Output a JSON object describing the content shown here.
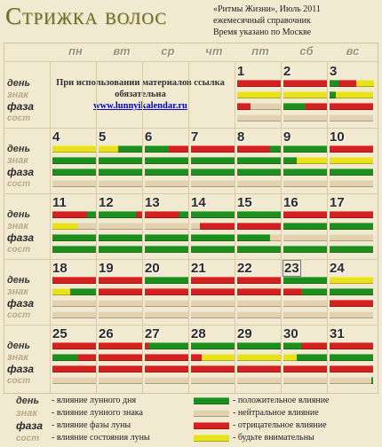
{
  "title": "Стрижка волос",
  "source": {
    "line1": "«Ритмы Жизни», Июль 2011",
    "line2": "ежемесячный справочник",
    "line3": "Время указано по Москве"
  },
  "note": {
    "text": "При использовании материалов ссылка обязательна",
    "link": "www.lunnyikalendar.ru"
  },
  "weekdays": [
    "пн",
    "вт",
    "ср",
    "чт",
    "пт",
    "сб",
    "вс"
  ],
  "row_labels": [
    "день",
    "знак",
    "фаза",
    "сост"
  ],
  "colors": {
    "positive": "#1c8f1c",
    "negative": "#d52020",
    "attention": "#e8e21a",
    "neutral": "#e2d2b0"
  },
  "today": "23",
  "weeks": [
    {
      "days": [
        null,
        null,
        null,
        null,
        {
          "n": "1",
          "rows": [
            [
              [
                "r",
                1
              ]
            ],
            [
              [
                "y",
                1
              ]
            ],
            [
              [
                "r",
                0.3
              ],
              [
                "n",
                0.7
              ]
            ],
            [
              [
                "n",
                1
              ]
            ]
          ]
        },
        {
          "n": "2",
          "rows": [
            [
              [
                "r",
                1
              ]
            ],
            [
              [
                "y",
                1
              ]
            ],
            [
              [
                "g",
                0.5
              ],
              [
                "r",
                0.5
              ]
            ],
            [
              [
                "n",
                1
              ]
            ]
          ]
        },
        {
          "n": "3",
          "rows": [
            [
              [
                "g",
                0.2
              ],
              [
                "r",
                0.4
              ],
              [
                "y",
                0.4
              ]
            ],
            [
              [
                "g",
                0.15
              ],
              [
                "y",
                0.85
              ]
            ],
            [
              [
                "r",
                1
              ]
            ],
            [
              [
                "n",
                1
              ]
            ]
          ]
        }
      ]
    },
    {
      "days": [
        {
          "n": "4",
          "rows": [
            [
              [
                "y",
                1
              ]
            ],
            [
              [
                "g",
                1
              ]
            ],
            [
              [
                "g",
                1
              ]
            ],
            [
              [
                "n",
                1
              ]
            ]
          ]
        },
        {
          "n": "5",
          "rows": [
            [
              [
                "y",
                0.45
              ],
              [
                "g",
                0.55
              ]
            ],
            [
              [
                "g",
                1
              ]
            ],
            [
              [
                "g",
                1
              ]
            ],
            [
              [
                "n",
                1
              ]
            ]
          ]
        },
        {
          "n": "6",
          "rows": [
            [
              [
                "g",
                0.55
              ],
              [
                "r",
                0.45
              ]
            ],
            [
              [
                "g",
                1
              ]
            ],
            [
              [
                "g",
                1
              ]
            ],
            [
              [
                "n",
                1
              ]
            ]
          ]
        },
        {
          "n": "7",
          "rows": [
            [
              [
                "r",
                1
              ]
            ],
            [
              [
                "g",
                1
              ]
            ],
            [
              [
                "g",
                1
              ]
            ],
            [
              [
                "n",
                1
              ]
            ]
          ]
        },
        {
          "n": "8",
          "rows": [
            [
              [
                "r",
                0.75
              ],
              [
                "g",
                0.25
              ]
            ],
            [
              [
                "g",
                1
              ]
            ],
            [
              [
                "g",
                1
              ]
            ],
            [
              [
                "n",
                1
              ]
            ]
          ]
        },
        {
          "n": "9",
          "rows": [
            [
              [
                "g",
                1
              ]
            ],
            [
              [
                "g",
                0.3
              ],
              [
                "y",
                0.7
              ]
            ],
            [
              [
                "g",
                1
              ]
            ],
            [
              [
                "n",
                1
              ]
            ]
          ]
        },
        {
          "n": "10",
          "rows": [
            [
              [
                "r",
                1
              ]
            ],
            [
              [
                "y",
                1
              ]
            ],
            [
              [
                "g",
                1
              ]
            ],
            [
              [
                "n",
                1
              ]
            ]
          ]
        }
      ]
    },
    {
      "days": [
        {
          "n": "11",
          "rows": [
            [
              [
                "r",
                0.8
              ],
              [
                "g",
                0.2
              ]
            ],
            [
              [
                "y",
                0.6
              ],
              [
                "n",
                0.4
              ]
            ],
            [
              [
                "g",
                1
              ]
            ],
            [
              [
                "g",
                1
              ]
            ]
          ]
        },
        {
          "n": "12",
          "rows": [
            [
              [
                "g",
                0.85
              ],
              [
                "r",
                0.15
              ]
            ],
            [
              [
                "n",
                1
              ]
            ],
            [
              [
                "g",
                1
              ]
            ],
            [
              [
                "g",
                1
              ]
            ]
          ]
        },
        {
          "n": "13",
          "rows": [
            [
              [
                "r",
                0.8
              ],
              [
                "g",
                0.2
              ]
            ],
            [
              [
                "n",
                1
              ]
            ],
            [
              [
                "g",
                1
              ]
            ],
            [
              [
                "g",
                1
              ]
            ]
          ]
        },
        {
          "n": "14",
          "rows": [
            [
              [
                "g",
                1
              ]
            ],
            [
              [
                "n",
                0.2
              ],
              [
                "r",
                0.8
              ]
            ],
            [
              [
                "g",
                1
              ]
            ],
            [
              [
                "g",
                1
              ]
            ]
          ]
        },
        {
          "n": "15",
          "rows": [
            [
              [
                "g",
                1
              ]
            ],
            [
              [
                "r",
                1
              ]
            ],
            [
              [
                "g",
                0.75
              ],
              [
                "n",
                0.25
              ]
            ],
            [
              [
                "g",
                1
              ]
            ]
          ]
        },
        {
          "n": "16",
          "rows": [
            [
              [
                "r",
                1
              ]
            ],
            [
              [
                "g",
                1
              ]
            ],
            [
              [
                "n",
                1
              ]
            ],
            [
              [
                "g",
                1
              ]
            ]
          ]
        },
        {
          "n": "17",
          "rows": [
            [
              [
                "r",
                1
              ]
            ],
            [
              [
                "g",
                1
              ]
            ],
            [
              [
                "n",
                1
              ]
            ],
            [
              [
                "g",
                1
              ]
            ]
          ]
        }
      ]
    },
    {
      "days": [
        {
          "n": "18",
          "rows": [
            [
              [
                "r",
                1
              ]
            ],
            [
              [
                "y",
                0.4
              ],
              [
                "g",
                0.6
              ]
            ],
            [
              [
                "n",
                1
              ]
            ],
            [
              [
                "n",
                1
              ]
            ]
          ]
        },
        {
          "n": "19",
          "rows": [
            [
              [
                "r",
                1
              ]
            ],
            [
              [
                "r",
                1
              ]
            ],
            [
              [
                "n",
                1
              ]
            ],
            [
              [
                "n",
                1
              ]
            ]
          ]
        },
        {
          "n": "20",
          "rows": [
            [
              [
                "g",
                1
              ]
            ],
            [
              [
                "r",
                1
              ]
            ],
            [
              [
                "n",
                1
              ]
            ],
            [
              [
                "n",
                1
              ]
            ]
          ]
        },
        {
          "n": "21",
          "rows": [
            [
              [
                "r",
                1
              ]
            ],
            [
              [
                "r",
                1
              ]
            ],
            [
              [
                "n",
                1
              ]
            ],
            [
              [
                "n",
                1
              ]
            ]
          ]
        },
        {
          "n": "22",
          "rows": [
            [
              [
                "r",
                1
              ]
            ],
            [
              [
                "r",
                1
              ]
            ],
            [
              [
                "n",
                1
              ]
            ],
            [
              [
                "n",
                1
              ]
            ]
          ]
        },
        {
          "n": "23",
          "rows": [
            [
              [
                "g",
                1
              ]
            ],
            [
              [
                "r",
                0.4
              ],
              [
                "g",
                0.6
              ]
            ],
            [
              [
                "n",
                1
              ]
            ],
            [
              [
                "n",
                1
              ]
            ]
          ]
        },
        {
          "n": "24",
          "rows": [
            [
              [
                "y",
                1
              ]
            ],
            [
              [
                "g",
                1
              ]
            ],
            [
              [
                "r",
                1
              ]
            ],
            [
              [
                "n",
                1
              ]
            ]
          ]
        }
      ]
    },
    {
      "days": [
        {
          "n": "25",
          "rows": [
            [
              [
                "r",
                1
              ]
            ],
            [
              [
                "g",
                0.6
              ],
              [
                "r",
                0.4
              ]
            ],
            [
              [
                "r",
                1
              ]
            ],
            [
              [
                "n",
                1
              ]
            ]
          ]
        },
        {
          "n": "26",
          "rows": [
            [
              [
                "r",
                1
              ]
            ],
            [
              [
                "r",
                1
              ]
            ],
            [
              [
                "r",
                1
              ]
            ],
            [
              [
                "n",
                1
              ]
            ]
          ]
        },
        {
          "n": "27",
          "rows": [
            [
              [
                "r",
                0.1
              ],
              [
                "g",
                0.9
              ]
            ],
            [
              [
                "r",
                1
              ]
            ],
            [
              [
                "r",
                1
              ]
            ],
            [
              [
                "n",
                1
              ]
            ]
          ]
        },
        {
          "n": "28",
          "rows": [
            [
              [
                "g",
                1
              ]
            ],
            [
              [
                "r",
                0.25
              ],
              [
                "y",
                0.75
              ]
            ],
            [
              [
                "r",
                1
              ]
            ],
            [
              [
                "n",
                1
              ]
            ]
          ]
        },
        {
          "n": "29",
          "rows": [
            [
              [
                "g",
                1
              ]
            ],
            [
              [
                "y",
                1
              ]
            ],
            [
              [
                "r",
                1
              ]
            ],
            [
              [
                "n",
                1
              ]
            ]
          ]
        },
        {
          "n": "30",
          "rows": [
            [
              [
                "g",
                0.4
              ],
              [
                "r",
                0.6
              ]
            ],
            [
              [
                "y",
                0.3
              ],
              [
                "g",
                0.7
              ]
            ],
            [
              [
                "r",
                1
              ]
            ],
            [
              [
                "n",
                1
              ]
            ]
          ]
        },
        {
          "n": "31",
          "rows": [
            [
              [
                "r",
                1
              ]
            ],
            [
              [
                "g",
                1
              ]
            ],
            [
              [
                "r",
                1
              ]
            ],
            [
              [
                "n",
                0.95
              ],
              [
                "g",
                0.05
              ]
            ]
          ]
        }
      ]
    }
  ],
  "legend": {
    "rows": [
      {
        "label": "день",
        "text": "- влияние лунного дня"
      },
      {
        "label": "знак",
        "text": "- влияние лунного знака"
      },
      {
        "label": "фаза",
        "text": "- влияние фазы луны"
      },
      {
        "label": "сост",
        "text": "- влияние состояния луны"
      }
    ],
    "swatches": [
      {
        "color": "g",
        "text": "- положительное влияние"
      },
      {
        "color": "n",
        "text": "- нейтральное влияние"
      },
      {
        "color": "r",
        "text": "- отрицательное влияние"
      },
      {
        "color": "y",
        "text": "- будьте внимательны"
      }
    ]
  }
}
